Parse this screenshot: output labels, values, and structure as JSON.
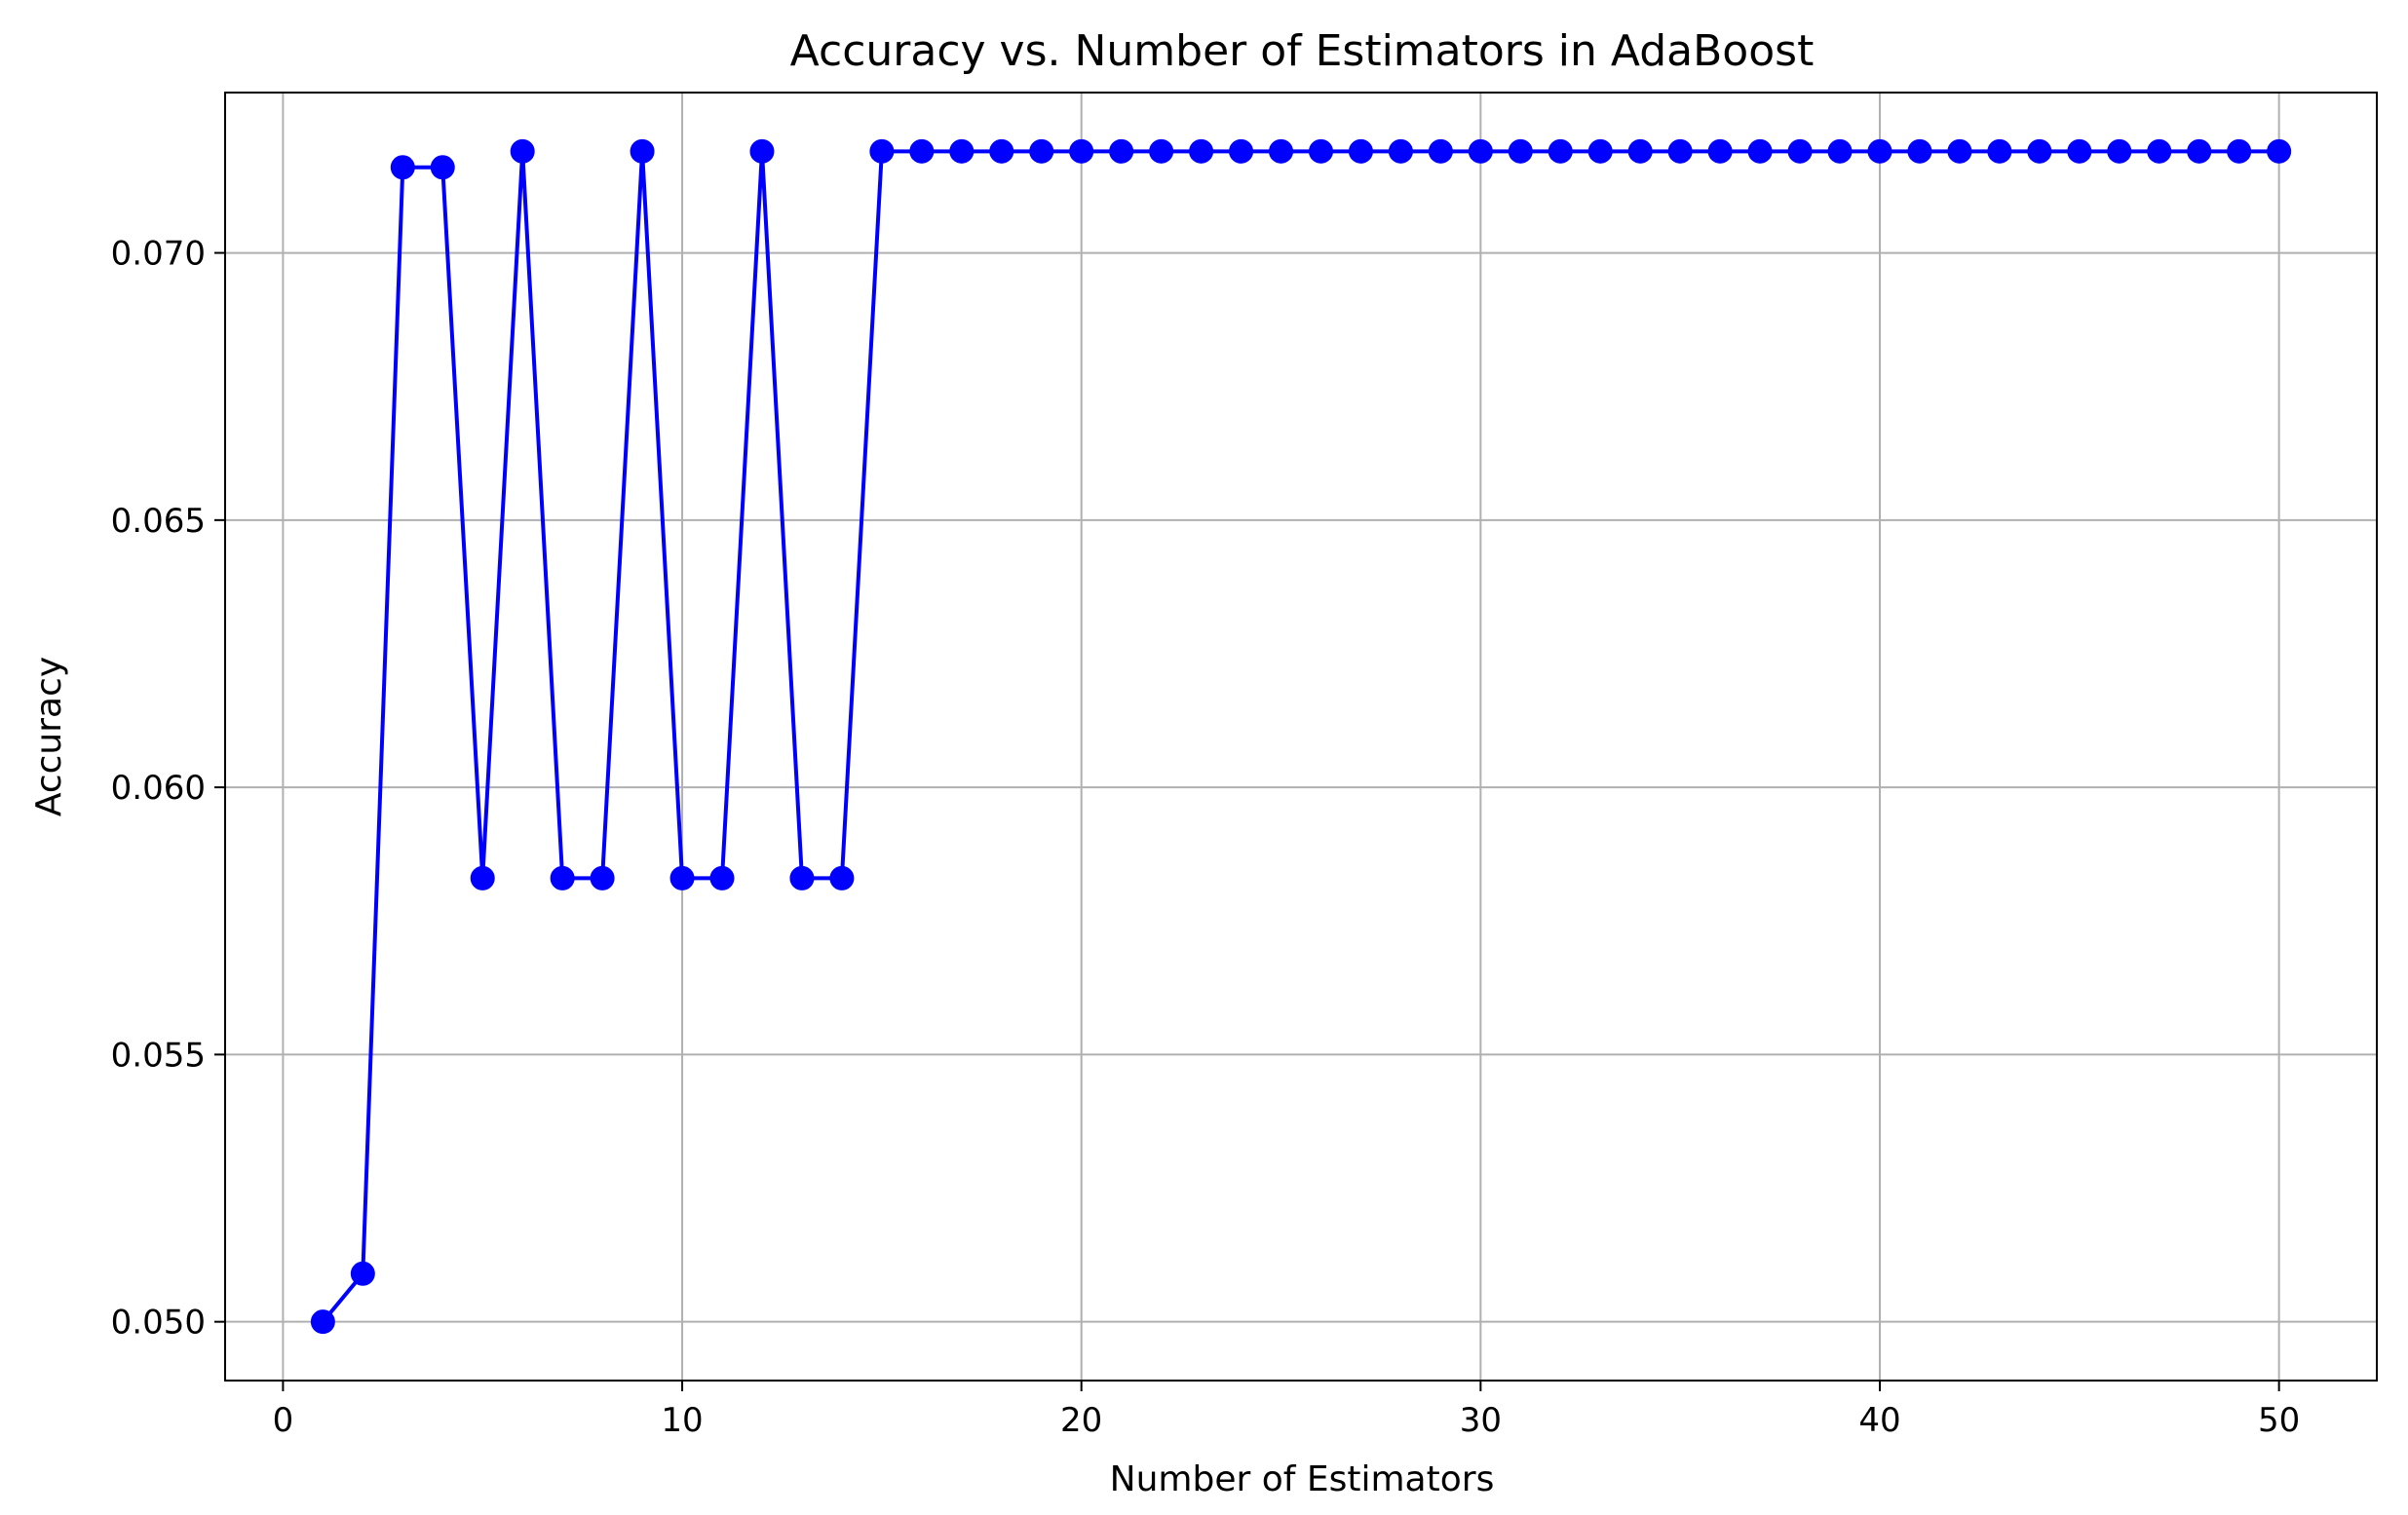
{
  "chart_data": {
    "type": "line",
    "title": "Accuracy vs. Number of Estimators in AdaBoost",
    "xlabel": "Number of Estimators",
    "ylabel": "Accuracy",
    "xlim": [
      -1.45,
      52.45
    ],
    "ylim": [
      0.0489,
      0.073
    ],
    "grid": true,
    "x_ticks": [
      0,
      10,
      20,
      30,
      40,
      50
    ],
    "x_tick_labels": [
      "0",
      "10",
      "20",
      "30",
      "40",
      "50"
    ],
    "y_ticks": [
      0.05,
      0.055,
      0.06,
      0.065,
      0.07
    ],
    "y_tick_labels": [
      "0.050",
      "0.055",
      "0.060",
      "0.065",
      "0.070"
    ],
    "series": [
      {
        "color": "#0000ff",
        "marker": "circle",
        "x": [
          1,
          2,
          3,
          4,
          5,
          6,
          7,
          8,
          9,
          10,
          11,
          12,
          13,
          14,
          15,
          16,
          17,
          18,
          19,
          20,
          21,
          22,
          23,
          24,
          25,
          26,
          27,
          28,
          29,
          30,
          31,
          32,
          33,
          34,
          35,
          36,
          37,
          38,
          39,
          40,
          41,
          42,
          43,
          44,
          45,
          46,
          47,
          48,
          49,
          50
        ],
        "values": [
          0.05,
          0.0509,
          0.0716,
          0.0716,
          0.0583,
          0.0719,
          0.0583,
          0.0583,
          0.0719,
          0.0583,
          0.0583,
          0.0719,
          0.0583,
          0.0583,
          0.0719,
          0.0719,
          0.0719,
          0.0719,
          0.0719,
          0.0719,
          0.0719,
          0.0719,
          0.0719,
          0.0719,
          0.0719,
          0.0719,
          0.0719,
          0.0719,
          0.0719,
          0.0719,
          0.0719,
          0.0719,
          0.0719,
          0.0719,
          0.0719,
          0.0719,
          0.0719,
          0.0719,
          0.0719,
          0.0719,
          0.0719,
          0.0719,
          0.0719,
          0.0719,
          0.0719,
          0.0719,
          0.0719,
          0.0719,
          0.0719,
          0.0719
        ]
      }
    ]
  },
  "colors": {
    "line": "#0000ff",
    "grid": "#b0b0b0",
    "axes": "#000000"
  }
}
